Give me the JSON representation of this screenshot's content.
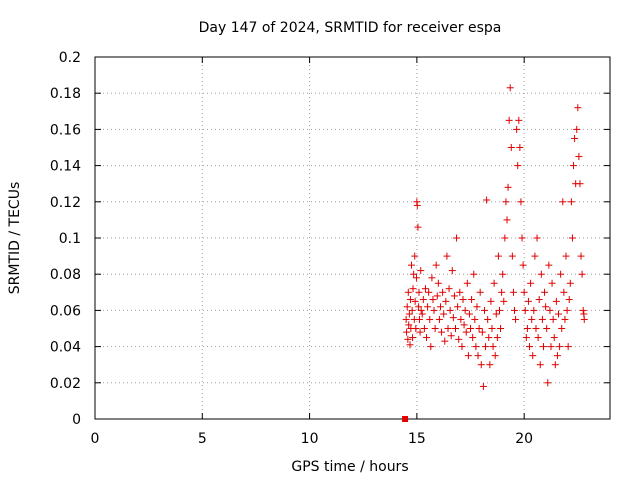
{
  "chart_data": {
    "type": "scatter",
    "title": "Day 147 of 2024, SRMTID for receiver espa",
    "xlabel": "GPS time / hours",
    "ylabel": "SRMTID / TECUs",
    "xlim": [
      0,
      24
    ],
    "ylim": [
      0,
      0.2
    ],
    "xticks": [
      0,
      5,
      10,
      15,
      20
    ],
    "yticks": [
      0,
      0.02,
      0.04,
      0.06,
      0.08,
      0.1,
      0.12,
      0.14,
      0.16,
      0.18,
      0.2
    ],
    "xtick_labels": [
      "0",
      "5",
      "10",
      "15",
      "20"
    ],
    "ytick_labels": [
      "0",
      "0.02",
      "0.04",
      "0.06",
      "0.08",
      "0.1",
      "0.12",
      "0.14",
      "0.16",
      "0.18",
      "0.2"
    ],
    "grid": true,
    "marker": "+",
    "color": "#e00000",
    "square_points": [
      {
        "x": 14.45,
        "y": 0.0
      }
    ],
    "series": [
      {
        "name": "SRMTID",
        "points": [
          [
            14.5,
            0.055
          ],
          [
            14.52,
            0.048
          ],
          [
            14.55,
            0.062
          ],
          [
            14.58,
            0.044
          ],
          [
            14.6,
            0.07
          ],
          [
            14.62,
            0.052
          ],
          [
            14.65,
            0.058
          ],
          [
            14.68,
            0.041
          ],
          [
            14.7,
            0.066
          ],
          [
            14.72,
            0.05
          ],
          [
            14.75,
            0.085
          ],
          [
            14.78,
            0.06
          ],
          [
            14.8,
            0.045
          ],
          [
            14.82,
            0.072
          ],
          [
            14.85,
            0.08
          ],
          [
            14.88,
            0.055
          ],
          [
            14.9,
            0.09
          ],
          [
            14.92,
            0.065
          ],
          [
            14.95,
            0.05
          ],
          [
            14.98,
            0.078
          ],
          [
            15.0,
            0.12
          ],
          [
            15.02,
            0.118
          ],
          [
            15.05,
            0.106
          ],
          [
            15.08,
            0.062
          ],
          [
            15.1,
            0.07
          ],
          [
            15.12,
            0.055
          ],
          [
            15.15,
            0.048
          ],
          [
            15.18,
            0.082
          ],
          [
            15.2,
            0.06
          ],
          [
            15.25,
            0.058
          ],
          [
            15.3,
            0.066
          ],
          [
            15.35,
            0.05
          ],
          [
            15.4,
            0.072
          ],
          [
            15.45,
            0.045
          ],
          [
            15.5,
            0.062
          ],
          [
            15.55,
            0.07
          ],
          [
            15.6,
            0.055
          ],
          [
            15.65,
            0.04
          ],
          [
            15.7,
            0.078
          ],
          [
            15.75,
            0.066
          ],
          [
            15.8,
            0.06
          ],
          [
            15.85,
            0.05
          ],
          [
            15.9,
            0.085
          ],
          [
            15.95,
            0.068
          ],
          [
            16.0,
            0.075
          ],
          [
            16.05,
            0.055
          ],
          [
            16.1,
            0.062
          ],
          [
            16.15,
            0.048
          ],
          [
            16.2,
            0.07
          ],
          [
            16.25,
            0.058
          ],
          [
            16.3,
            0.043
          ],
          [
            16.35,
            0.065
          ],
          [
            16.4,
            0.09
          ],
          [
            16.45,
            0.05
          ],
          [
            16.5,
            0.072
          ],
          [
            16.55,
            0.06
          ],
          [
            16.6,
            0.046
          ],
          [
            16.65,
            0.082
          ],
          [
            16.7,
            0.056
          ],
          [
            16.75,
            0.068
          ],
          [
            16.8,
            0.05
          ],
          [
            16.85,
            0.1
          ],
          [
            16.9,
            0.062
          ],
          [
            16.95,
            0.044
          ],
          [
            17.0,
            0.07
          ],
          [
            17.05,
            0.055
          ],
          [
            17.1,
            0.04
          ],
          [
            17.15,
            0.066
          ],
          [
            17.2,
            0.052
          ],
          [
            17.25,
            0.06
          ],
          [
            17.3,
            0.048
          ],
          [
            17.35,
            0.075
          ],
          [
            17.4,
            0.035
          ],
          [
            17.45,
            0.058
          ],
          [
            17.5,
            0.05
          ],
          [
            17.55,
            0.066
          ],
          [
            17.6,
            0.045
          ],
          [
            17.65,
            0.08
          ],
          [
            17.7,
            0.055
          ],
          [
            17.75,
            0.04
          ],
          [
            17.8,
            0.062
          ],
          [
            17.85,
            0.035
          ],
          [
            17.9,
            0.05
          ],
          [
            17.95,
            0.07
          ],
          [
            18.0,
            0.03
          ],
          [
            18.05,
            0.048
          ],
          [
            18.1,
            0.018
          ],
          [
            18.15,
            0.06
          ],
          [
            18.2,
            0.04
          ],
          [
            18.25,
            0.121
          ],
          [
            18.3,
            0.055
          ],
          [
            18.35,
            0.045
          ],
          [
            18.4,
            0.03
          ],
          [
            18.45,
            0.065
          ],
          [
            18.5,
            0.05
          ],
          [
            18.55,
            0.04
          ],
          [
            18.6,
            0.075
          ],
          [
            18.65,
            0.035
          ],
          [
            18.7,
            0.058
          ],
          [
            18.75,
            0.045
          ],
          [
            18.8,
            0.09
          ],
          [
            18.85,
            0.06
          ],
          [
            18.9,
            0.05
          ],
          [
            18.95,
            0.07
          ],
          [
            19.0,
            0.08
          ],
          [
            19.05,
            0.065
          ],
          [
            19.1,
            0.1
          ],
          [
            19.15,
            0.12
          ],
          [
            19.2,
            0.11
          ],
          [
            19.25,
            0.128
          ],
          [
            19.3,
            0.165
          ],
          [
            19.35,
            0.183
          ],
          [
            19.4,
            0.15
          ],
          [
            19.45,
            0.09
          ],
          [
            19.5,
            0.07
          ],
          [
            19.55,
            0.06
          ],
          [
            19.6,
            0.055
          ],
          [
            19.65,
            0.16
          ],
          [
            19.7,
            0.14
          ],
          [
            19.75,
            0.165
          ],
          [
            19.8,
            0.15
          ],
          [
            19.85,
            0.12
          ],
          [
            19.9,
            0.1
          ],
          [
            19.95,
            0.085
          ],
          [
            20.0,
            0.07
          ],
          [
            20.05,
            0.06
          ],
          [
            20.1,
            0.045
          ],
          [
            20.15,
            0.05
          ],
          [
            20.2,
            0.065
          ],
          [
            20.25,
            0.04
          ],
          [
            20.3,
            0.075
          ],
          [
            20.35,
            0.055
          ],
          [
            20.4,
            0.035
          ],
          [
            20.45,
            0.06
          ],
          [
            20.5,
            0.09
          ],
          [
            20.55,
            0.05
          ],
          [
            20.6,
            0.1
          ],
          [
            20.65,
            0.045
          ],
          [
            20.7,
            0.066
          ],
          [
            20.75,
            0.03
          ],
          [
            20.8,
            0.08
          ],
          [
            20.85,
            0.055
          ],
          [
            20.9,
            0.04
          ],
          [
            20.95,
            0.07
          ],
          [
            21.0,
            0.062
          ],
          [
            21.05,
            0.05
          ],
          [
            21.1,
            0.02
          ],
          [
            21.15,
            0.085
          ],
          [
            21.2,
            0.06
          ],
          [
            21.25,
            0.04
          ],
          [
            21.3,
            0.075
          ],
          [
            21.35,
            0.055
          ],
          [
            21.4,
            0.045
          ],
          [
            21.45,
            0.03
          ],
          [
            21.5,
            0.065
          ],
          [
            21.55,
            0.035
          ],
          [
            21.6,
            0.058
          ],
          [
            21.65,
            0.04
          ],
          [
            21.7,
            0.08
          ],
          [
            21.75,
            0.05
          ],
          [
            21.8,
            0.12
          ],
          [
            21.85,
            0.07
          ],
          [
            21.9,
            0.055
          ],
          [
            21.95,
            0.09
          ],
          [
            22.0,
            0.06
          ],
          [
            22.05,
            0.04
          ],
          [
            22.1,
            0.066
          ],
          [
            22.15,
            0.075
          ],
          [
            22.2,
            0.12
          ],
          [
            22.25,
            0.1
          ],
          [
            22.3,
            0.14
          ],
          [
            22.35,
            0.155
          ],
          [
            22.4,
            0.13
          ],
          [
            22.45,
            0.16
          ],
          [
            22.5,
            0.172
          ],
          [
            22.55,
            0.145
          ],
          [
            22.6,
            0.13
          ],
          [
            22.65,
            0.09
          ],
          [
            22.7,
            0.08
          ],
          [
            22.75,
            0.06
          ],
          [
            22.78,
            0.058
          ],
          [
            22.8,
            0.055
          ]
        ]
      }
    ]
  }
}
